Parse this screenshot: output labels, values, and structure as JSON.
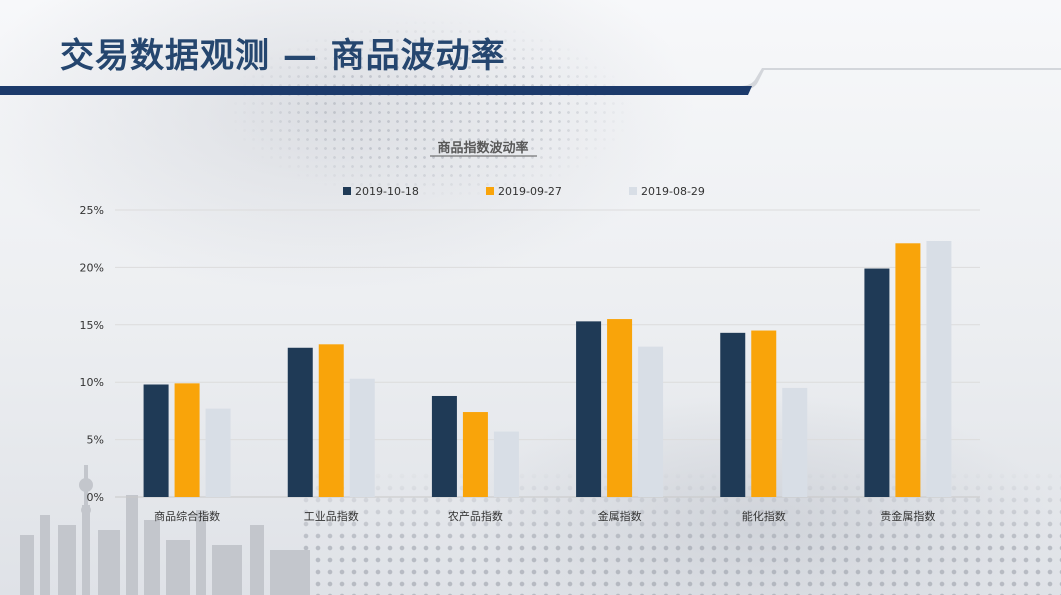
{
  "slide": {
    "title": "交易数据观测 — 商品波动率"
  },
  "colors": {
    "title": "#25466f",
    "rule_dark": "#1c3a6b",
    "series": [
      "#1f3a56",
      "#f9a40a",
      "#d8dee6"
    ]
  },
  "chart_data": {
    "type": "bar",
    "title": "商品指数波动率",
    "xlabel": "",
    "ylabel": "",
    "categories": [
      "商品综合指数",
      "工业品指数",
      "农产品指数",
      "金属指数",
      "能化指数",
      "贵金属指数"
    ],
    "series": [
      {
        "name": "2019-10-18",
        "values": [
          9.8,
          13.0,
          8.8,
          15.3,
          14.3,
          19.9
        ]
      },
      {
        "name": "2019-09-27",
        "values": [
          9.9,
          13.3,
          7.4,
          15.5,
          14.5,
          22.1
        ]
      },
      {
        "name": "2019-08-29",
        "values": [
          7.7,
          10.3,
          5.7,
          13.1,
          9.5,
          22.3
        ]
      }
    ],
    "ylim": [
      0,
      25
    ],
    "yticks": [
      "0%",
      "5%",
      "10%",
      "15%",
      "20%",
      "25%"
    ],
    "ytick_values": [
      0,
      5,
      10,
      15,
      20,
      25
    ],
    "grid": true,
    "legend_position": "top"
  }
}
